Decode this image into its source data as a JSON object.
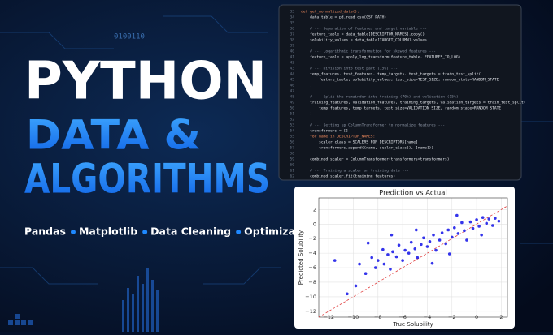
{
  "banner": {
    "binary_text": "0100110",
    "title_lines": [
      "PYTHON",
      "DATA &",
      "ALGORITHMS"
    ],
    "tags": [
      "Pandas",
      "Matplotlib",
      "Data Cleaning",
      "Optimization"
    ]
  },
  "code": {
    "lines": [
      {
        "n": 33,
        "code": "def get_normalized_data():"
      },
      {
        "n": 34,
        "code": "    data_table = pd.read_csv(CSV_PATH)"
      },
      {
        "n": 35,
        "code": ""
      },
      {
        "n": 36,
        "code": "    # --- Separation of features and target variable ---"
      },
      {
        "n": 37,
        "code": "    feature_table = data_table[DESCRIPTOR_NAMES].copy()"
      },
      {
        "n": 38,
        "code": "    solubility_values = data_table[TARGET_COLUMN].values"
      },
      {
        "n": 39,
        "code": ""
      },
      {
        "n": 40,
        "code": "    # --- Logarithmic transformation for skewed features ---"
      },
      {
        "n": 41,
        "code": "    feature_table = apply_log_transform(feature_table, FEATURES_TO_LOG)"
      },
      {
        "n": 42,
        "code": ""
      },
      {
        "n": 43,
        "code": "    # --- Division into test part (15%) ---"
      },
      {
        "n": 44,
        "code": "    temp_features, test_features, temp_targets, test_targets = train_test_split("
      },
      {
        "n": 45,
        "code": "        feature_table, solubility_values, test_size=TEST_SIZE, random_state=RANDOM_STATE"
      },
      {
        "n": 46,
        "code": "    )"
      },
      {
        "n": 47,
        "code": ""
      },
      {
        "n": 48,
        "code": "    # --- Split the remainder into training (70%) and validation (15%) ---"
      },
      {
        "n": 49,
        "code": "    training_features, validation_features, training_targets, validation_targets = train_test_split("
      },
      {
        "n": 50,
        "code": "        temp_features, temp_targets, test_size=VALIDATION_SIZE, random_state=RANDOM_STATE"
      },
      {
        "n": 51,
        "code": "    )"
      },
      {
        "n": 52,
        "code": ""
      },
      {
        "n": 53,
        "code": "    # --- Setting up ColumnTransformer to normalize features ---"
      },
      {
        "n": 54,
        "code": "    transformers = []"
      },
      {
        "n": 55,
        "code": "    for name in DESCRIPTOR_NAMES:"
      },
      {
        "n": 56,
        "code": "        scaler_class = SCALERS_FOR_DESCRIPTORS[name]"
      },
      {
        "n": 57,
        "code": "        transformers.append((name, scaler_class(), [name]))"
      },
      {
        "n": 58,
        "code": ""
      },
      {
        "n": 59,
        "code": "    combined_scaler = ColumnTransformer(transformers=transformers)"
      },
      {
        "n": 60,
        "code": ""
      },
      {
        "n": 61,
        "code": "    # --- Training a scaler on training data ---"
      },
      {
        "n": 62,
        "code": "    combined_scaler.fit(training_features)"
      }
    ]
  },
  "chart_data": {
    "type": "scatter",
    "title": "Prediction vs Actual",
    "x_label": "True Solubility",
    "y_label": "Predicted Solubility",
    "color": "#1010e8",
    "grid": true,
    "x": [
      -11.5,
      -9.8,
      -9.5,
      -9,
      -8.5,
      -8.2,
      -8,
      -7.6,
      -7.5,
      -7.2,
      -7,
      -6.8,
      -6.5,
      -6.3,
      -6,
      -5.8,
      -5.5,
      -5.3,
      -5,
      -4.8,
      -4.5,
      -4.3,
      -4,
      -3.8,
      -3.5,
      -3.3,
      -3,
      -2.8,
      -2.5,
      -2.3,
      -2,
      -1.8,
      -1.5,
      -1.2,
      -1,
      -0.8,
      -0.5,
      -0.3,
      0,
      0.2,
      0.5,
      0.8,
      1,
      1.3,
      1.5,
      1.8,
      -10.5,
      -8.8,
      -6.9,
      -3.6,
      -2.2,
      0.4,
      -1.6,
      -4.9
    ],
    "values": [
      -5,
      -8.5,
      -5.5,
      -6.8,
      -4.6,
      -6,
      -5,
      -3.5,
      -5.5,
      -4.2,
      -6.2,
      -3.8,
      -4.5,
      -2.9,
      -5,
      -3.6,
      -4,
      -2.5,
      -3.4,
      -4.6,
      -2.8,
      -1.9,
      -3.1,
      -2.4,
      -1.5,
      -3.6,
      -2.2,
      -1.2,
      -2.7,
      -0.8,
      -1.8,
      -0.5,
      -1.3,
      0.2,
      -0.9,
      -2.2,
      0.3,
      -0.6,
      0.6,
      -0.3,
      0.9,
      0.1,
      0.7,
      -0.2,
      0.8,
      0.4,
      -9.6,
      -2.6,
      -1.5,
      -5.4,
      -4.1,
      -1.5,
      1.2,
      -0.8
    ],
    "xlim": [
      -12.8,
      2.5
    ],
    "ylim": [
      -12.8,
      3.6
    ],
    "xticks": [
      {
        "value": -12,
        "label": "−12"
      },
      {
        "value": -10,
        "label": "−10"
      },
      {
        "value": -8,
        "label": "−8"
      },
      {
        "value": -6,
        "label": "−6"
      },
      {
        "value": -4,
        "label": "−4"
      },
      {
        "value": -2,
        "label": "−2"
      },
      0,
      2
    ],
    "yticks": [
      {
        "value": -12,
        "label": "−12"
      },
      {
        "value": -10,
        "label": "−10"
      },
      {
        "value": -8,
        "label": "−8"
      },
      {
        "value": -6,
        "label": "−6"
      },
      {
        "value": -4,
        "label": "−4"
      },
      {
        "value": -2,
        "label": "−2"
      },
      0,
      2
    ]
  }
}
